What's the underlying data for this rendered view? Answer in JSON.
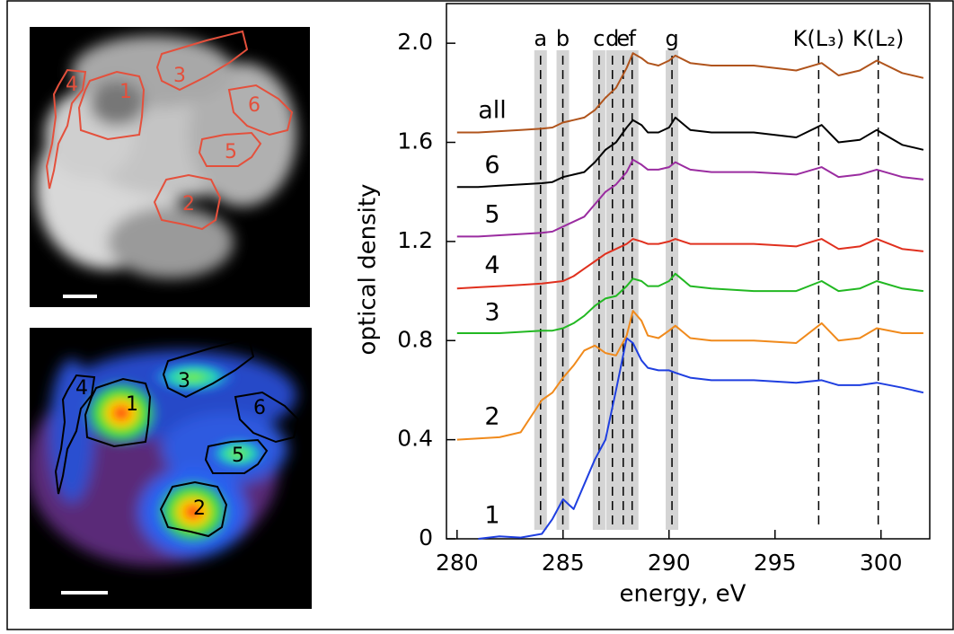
{
  "chart_data": {
    "type": "line",
    "x_label": "energy,  eV",
    "y_label": "optical density",
    "x": [
      280,
      281,
      282,
      283,
      284,
      284.5,
      285,
      285.5,
      286,
      286.5,
      287,
      287.5,
      288,
      288.3,
      288.7,
      289,
      289.5,
      290,
      290.3,
      291,
      292,
      294,
      296,
      297.2,
      298,
      299,
      299.8,
      301,
      302
    ],
    "series": [
      {
        "name": "1",
        "color": "#1f3fe0",
        "values": [
          null,
          0,
          0.01,
          0.005,
          0.02,
          0.08,
          0.16,
          0.12,
          0.22,
          0.32,
          0.4,
          0.6,
          0.81,
          0.79,
          0.72,
          0.69,
          0.68,
          0.68,
          0.67,
          0.65,
          0.64,
          0.64,
          0.63,
          0.64,
          0.62,
          0.62,
          0.63,
          0.61,
          0.59
        ]
      },
      {
        "name": "2",
        "color": "#f08a1c",
        "values": [
          0.4,
          0.405,
          0.41,
          0.43,
          0.56,
          0.59,
          0.65,
          0.7,
          0.76,
          0.78,
          0.75,
          0.74,
          0.82,
          0.92,
          0.88,
          0.82,
          0.81,
          0.84,
          0.86,
          0.81,
          0.8,
          0.8,
          0.79,
          0.87,
          0.8,
          0.81,
          0.85,
          0.83,
          0.83
        ]
      },
      {
        "name": "3",
        "color": "#22b822",
        "values": [
          0.83,
          0.83,
          0.83,
          0.835,
          0.84,
          0.84,
          0.85,
          0.87,
          0.9,
          0.94,
          0.97,
          0.98,
          1.02,
          1.05,
          1.04,
          1.02,
          1.02,
          1.04,
          1.07,
          1.02,
          1.01,
          1.0,
          1.0,
          1.04,
          1.0,
          1.01,
          1.04,
          1.01,
          1.0
        ]
      },
      {
        "name": "4",
        "color": "#e0301e",
        "values": [
          1.01,
          1.015,
          1.02,
          1.025,
          1.03,
          1.035,
          1.04,
          1.06,
          1.09,
          1.12,
          1.15,
          1.17,
          1.19,
          1.21,
          1.2,
          1.19,
          1.19,
          1.2,
          1.21,
          1.19,
          1.19,
          1.19,
          1.18,
          1.21,
          1.17,
          1.18,
          1.21,
          1.17,
          1.16
        ]
      },
      {
        "name": "5",
        "color": "#9a2ca0",
        "values": [
          1.22,
          1.22,
          1.225,
          1.23,
          1.235,
          1.24,
          1.26,
          1.28,
          1.3,
          1.35,
          1.4,
          1.43,
          1.48,
          1.53,
          1.51,
          1.49,
          1.49,
          1.5,
          1.52,
          1.49,
          1.48,
          1.48,
          1.47,
          1.5,
          1.46,
          1.47,
          1.49,
          1.46,
          1.45
        ]
      },
      {
        "name": "6",
        "color": "#000000",
        "values": [
          1.42,
          1.42,
          1.425,
          1.43,
          1.435,
          1.44,
          1.46,
          1.47,
          1.48,
          1.52,
          1.57,
          1.6,
          1.66,
          1.69,
          1.67,
          1.64,
          1.64,
          1.66,
          1.7,
          1.65,
          1.64,
          1.64,
          1.62,
          1.67,
          1.6,
          1.61,
          1.65,
          1.59,
          1.57
        ]
      },
      {
        "name": "all",
        "color": "#b0541c",
        "values": [
          1.64,
          1.64,
          1.645,
          1.65,
          1.655,
          1.66,
          1.68,
          1.69,
          1.7,
          1.73,
          1.78,
          1.82,
          1.9,
          1.96,
          1.94,
          1.92,
          1.91,
          1.93,
          1.95,
          1.92,
          1.91,
          1.91,
          1.89,
          1.92,
          1.87,
          1.89,
          1.93,
          1.88,
          1.86
        ]
      }
    ],
    "markers": [
      {
        "label": "a",
        "x": 283.94,
        "shaded": true
      },
      {
        "label": "b",
        "x": 284.99,
        "shaded": true
      },
      {
        "label": "c",
        "x": 286.7,
        "shaded": true
      },
      {
        "label": "d",
        "x": 287.33,
        "shaded": true
      },
      {
        "label": "e",
        "x": 287.84,
        "shaded": true
      },
      {
        "label": "f",
        "x": 288.26,
        "shaded": true
      },
      {
        "label": "g",
        "x": 290.14,
        "shaded": true
      },
      {
        "label": "K(L₃)",
        "x": 297.06,
        "shaded": false
      },
      {
        "label": "K(L₂)",
        "x": 299.87,
        "shaded": false
      }
    ],
    "xlim": [
      279.5,
      302.3
    ],
    "ylim": [
      0,
      2.16
    ],
    "xticks": [
      280,
      285,
      290,
      295,
      300
    ],
    "yticks": [
      0,
      0.4,
      0.8,
      1.2,
      1.6,
      {
        "value": 2,
        "label": "2.0"
      }
    ]
  },
  "images": [
    {
      "regions": [
        "1",
        "2",
        "3",
        "4",
        "5",
        "6"
      ]
    },
    {
      "regions": [
        "1",
        "2",
        "3",
        "4",
        "5",
        "6"
      ]
    }
  ]
}
